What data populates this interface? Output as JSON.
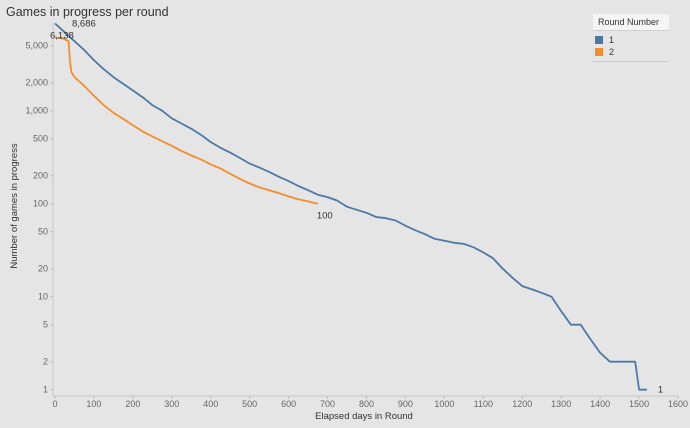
{
  "chart_data": {
    "type": "line",
    "title": "Games in progress per round",
    "xlabel": "Elapsed days in Round",
    "ylabel": "Number of games in progress",
    "xlim": [
      0,
      1600
    ],
    "ylim": [
      0.9,
      9000
    ],
    "yscale": "log",
    "grid": false,
    "legend_position": "top-right",
    "x_ticks": [
      "0",
      "100",
      "200",
      "300",
      "400",
      "500",
      "600",
      "700",
      "800",
      "900",
      "1000",
      "1100",
      "1200",
      "1300",
      "1400",
      "1500",
      "1600"
    ],
    "y_ticks": [
      "1",
      "2",
      "5",
      "10",
      "20",
      "50",
      "100",
      "200",
      "500",
      "1,000",
      "2,000",
      "5,000"
    ],
    "legend_title": "Round Number",
    "series": [
      {
        "name": "1",
        "color": "#4e79a7",
        "x": [
          0,
          25,
          50,
          75,
          100,
          125,
          150,
          175,
          200,
          225,
          250,
          275,
          300,
          325,
          350,
          375,
          400,
          425,
          450,
          475,
          500,
          525,
          550,
          575,
          600,
          625,
          650,
          675,
          700,
          725,
          750,
          775,
          800,
          825,
          850,
          875,
          900,
          925,
          950,
          975,
          1000,
          1025,
          1050,
          1075,
          1100,
          1125,
          1150,
          1175,
          1200,
          1225,
          1250,
          1275,
          1300,
          1325,
          1350,
          1375,
          1400,
          1425,
          1450,
          1475,
          1490,
          1500,
          1520
        ],
        "values": [
          8686,
          7000,
          5600,
          4500,
          3500,
          2800,
          2300,
          1950,
          1650,
          1400,
          1150,
          1000,
          830,
          730,
          640,
          550,
          460,
          400,
          355,
          310,
          270,
          245,
          220,
          195,
          175,
          155,
          140,
          125,
          118,
          108,
          93,
          86,
          80,
          72,
          70,
          66,
          58,
          52,
          47,
          42,
          40,
          38,
          37,
          34,
          30,
          26,
          20,
          16,
          13,
          12,
          11,
          10,
          7,
          5,
          5,
          3.5,
          2.5,
          2,
          2,
          2,
          2,
          1,
          1
        ],
        "end_label": "1"
      },
      {
        "name": "2",
        "color": "#f28e2b",
        "x": [
          0,
          20,
          35,
          38,
          42,
          50,
          75,
          100,
          125,
          150,
          175,
          200,
          225,
          250,
          275,
          300,
          325,
          350,
          375,
          400,
          425,
          450,
          475,
          500,
          525,
          550,
          575,
          600,
          625,
          650,
          675
        ],
        "values": [
          6138,
          6000,
          5600,
          3500,
          2600,
          2300,
          1850,
          1450,
          1150,
          950,
          820,
          700,
          600,
          530,
          470,
          420,
          370,
          330,
          300,
          265,
          240,
          210,
          185,
          165,
          150,
          140,
          130,
          120,
          112,
          106,
          100
        ],
        "end_label": "100"
      }
    ],
    "annotations": [
      "8,686",
      "6,138",
      "100",
      "1"
    ]
  }
}
